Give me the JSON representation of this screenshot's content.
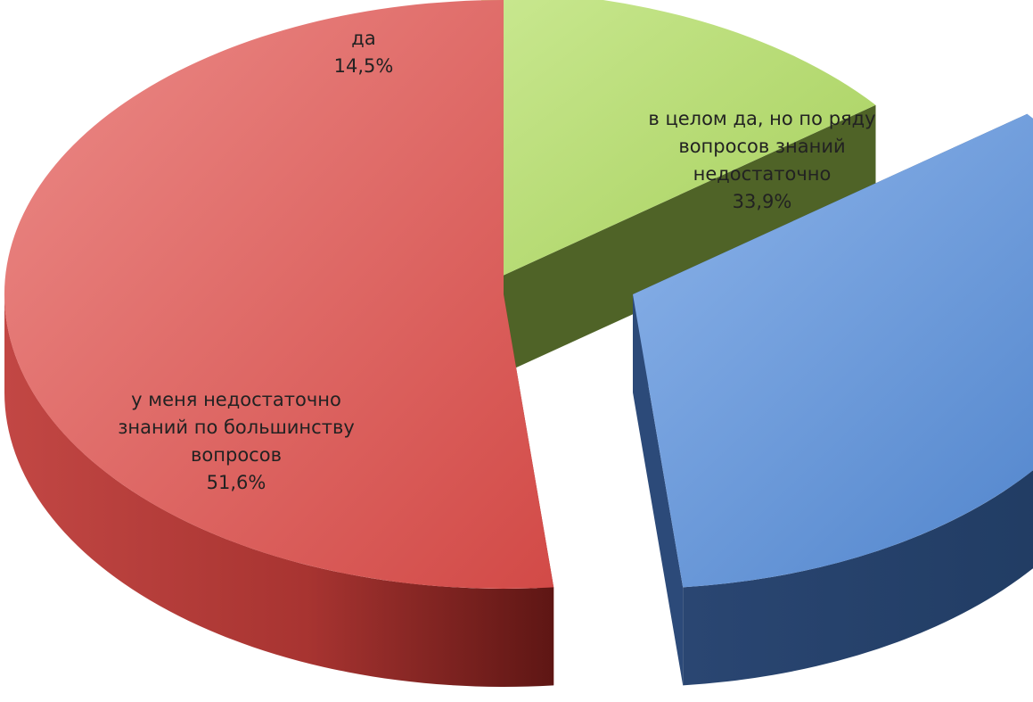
{
  "chart_data": {
    "type": "pie",
    "style": "3d-exploded",
    "legend": "none",
    "slices": [
      {
        "category": "да",
        "value": 14.5,
        "value_label": "14,5%",
        "label_lines": [
          "да"
        ],
        "color_top": "#b6dc72",
        "color_side": "#4f6327"
      },
      {
        "category": "в целом да, но по ряду вопросов знаний недостаточно",
        "value": 33.9,
        "value_label": "33,9%",
        "label_lines": [
          "в целом да, но по ряду",
          "вопросов знаний",
          "недостаточно"
        ],
        "color_top": "#6d9ad8",
        "color_side": "#2c4a79"
      },
      {
        "category": "у меня недостаточно знаний по большинству вопросов",
        "value": 51.6,
        "value_label": "51,6%",
        "label_lines": [
          "у меня недостаточно",
          "знаний по большинству",
          "вопросов"
        ],
        "color_top": "#e06a68",
        "color_side": "#8e2624"
      }
    ]
  }
}
